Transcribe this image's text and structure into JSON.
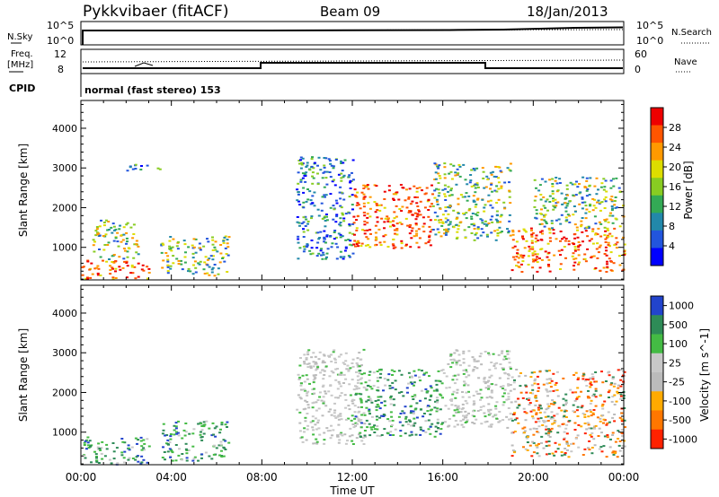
{
  "header": {
    "title": "Pykkvibaer (fitACF)",
    "beam": "Beam 09",
    "date": "18/Jan/2013"
  },
  "top_panels": {
    "nsky_label": "N.Sky",
    "nsearch_label": "N.Search",
    "freq_label_1": "Freq.",
    "freq_label_2": "[MHz]",
    "nave_label": "Nave",
    "cpid_label": "CPID",
    "cpid_text": "normal (fast stereo) 153",
    "noise_ticks": [
      "10^5",
      "10^0"
    ],
    "freq_ticks": [
      "12",
      "8"
    ],
    "nave_ticks": [
      "60",
      "0"
    ]
  },
  "chart_data": [
    {
      "type": "heatmap",
      "name": "power",
      "ylabel": "Slant Range [km]",
      "xlabel": "Time UT",
      "x_ticks": [
        "00:00",
        "04:00",
        "08:00",
        "12:00",
        "16:00",
        "20:00",
        "00:00"
      ],
      "y_ticks": [
        1000,
        2000,
        3000,
        4000
      ],
      "xlim": [
        0,
        24
      ],
      "ylim": [
        180,
        4700
      ],
      "colorbar": {
        "label": "Power [dB]",
        "ticks": [
          "28",
          "24",
          "20",
          "16",
          "12",
          "8",
          "4"
        ]
      },
      "bands": [
        {
          "x": [
            0,
            3
          ],
          "y": [
            200,
            700
          ],
          "level": "high"
        },
        {
          "x": [
            0.5,
            2.5
          ],
          "y": [
            700,
            1700
          ],
          "level": "mid"
        },
        {
          "x": [
            2,
            3.5
          ],
          "y": [
            2950,
            3150
          ],
          "level": "low"
        },
        {
          "x": [
            3.5,
            6.5
          ],
          "y": [
            300,
            1300
          ],
          "level": "mid"
        },
        {
          "x": [
            9.5,
            12
          ],
          "y": [
            700,
            3300
          ],
          "level": "low"
        },
        {
          "x": [
            12,
            15.5
          ],
          "y": [
            1000,
            2600
          ],
          "level": "high"
        },
        {
          "x": [
            15.5,
            19
          ],
          "y": [
            1200,
            3150
          ],
          "level": "mid"
        },
        {
          "x": [
            19,
            24
          ],
          "y": [
            400,
            1500
          ],
          "level": "high"
        },
        {
          "x": [
            20,
            24
          ],
          "y": [
            1500,
            2800
          ],
          "level": "mid"
        }
      ]
    },
    {
      "type": "heatmap",
      "name": "velocity",
      "ylabel": "Slant Range [km]",
      "xlabel": "Time UT",
      "x_ticks": [
        "00:00",
        "04:00",
        "08:00",
        "12:00",
        "16:00",
        "20:00",
        "00:00"
      ],
      "y_ticks": [
        1000,
        2000,
        3000,
        4000
      ],
      "xlim": [
        0,
        24
      ],
      "ylim": [
        180,
        4700
      ],
      "colorbar": {
        "label": "Velocity [m s^-1]",
        "ticks": [
          "1000",
          "500",
          "100",
          "25",
          "-25",
          "-100",
          "-500",
          "-1000"
        ]
      },
      "bands": [
        {
          "x": [
            0,
            3
          ],
          "y": [
            200,
            900
          ],
          "level": "pos"
        },
        {
          "x": [
            3.5,
            6.5
          ],
          "y": [
            300,
            1300
          ],
          "level": "pos"
        },
        {
          "x": [
            9.5,
            12.5
          ],
          "y": [
            700,
            3100
          ],
          "level": "zero"
        },
        {
          "x": [
            12,
            16
          ],
          "y": [
            900,
            2600
          ],
          "level": "pos"
        },
        {
          "x": [
            16,
            19
          ],
          "y": [
            1100,
            3100
          ],
          "level": "zero"
        },
        {
          "x": [
            19,
            24
          ],
          "y": [
            400,
            2600
          ],
          "level": "neg"
        }
      ]
    }
  ],
  "colors": {
    "power_scale": [
      "#ee0000",
      "#ff5500",
      "#ff9900",
      "#dddd00",
      "#88cc22",
      "#33aa55",
      "#2288aa",
      "#2255dd",
      "#0000ff"
    ],
    "velocity_scale": [
      "#2244cc",
      "#2e8b57",
      "#44bb44",
      "#c8c8c8",
      "#bbbbbb",
      "#ffaa00",
      "#ff7700",
      "#ff2200"
    ]
  }
}
